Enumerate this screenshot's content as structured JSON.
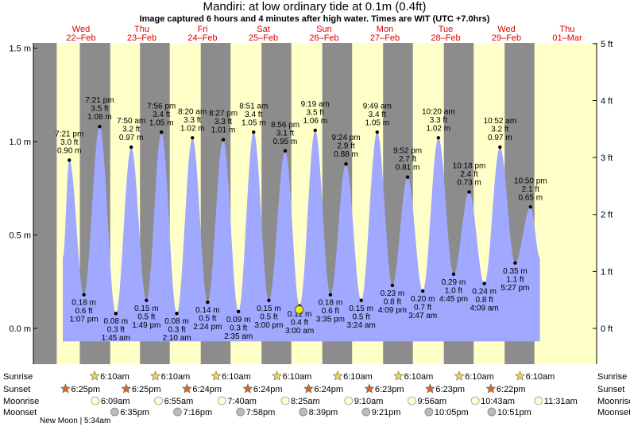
{
  "title": "Mandiri: at low  ordinary tide at 0.1m (0.4ft)",
  "subtitle": "Image captured 6 hours and 4 minutes after high water. Times are WIT (UTC +7.0hrs)",
  "colors": {
    "day": "#ffffc8",
    "night": "#8c8c8c",
    "tide": "#a0a8ff",
    "date_label": "#e00000",
    "current_marker": "#f0f000"
  },
  "chart_data": {
    "type": "area",
    "title": "Mandiri: at low  ordinary tide at 0.1m (0.4ft)",
    "x_unit": "days from 22-Feb 00:00 (WIT)",
    "ylim_m": [
      -0.25,
      1.55
    ],
    "ylim_ft": [
      -0.82,
      5.09
    ],
    "y_ticks_m": [
      {
        "v": 1.5,
        "label": "1.5 m"
      },
      {
        "v": 1.0,
        "label": "1.0 m"
      },
      {
        "v": 0.5,
        "label": "0.5 m"
      },
      {
        "v": 0.0,
        "label": "0.0 m"
      }
    ],
    "y_ticks_ft": [
      {
        "v": 5,
        "label": "5 ft"
      },
      {
        "v": 4,
        "label": "4 ft"
      },
      {
        "v": 3,
        "label": "3 ft"
      },
      {
        "v": 2,
        "label": "2 ft"
      },
      {
        "v": 1,
        "label": "1 ft"
      },
      {
        "v": 0,
        "label": "0 ft"
      }
    ],
    "days": [
      {
        "dow": "Wed",
        "date": "22–Feb",
        "x": 0.0
      },
      {
        "dow": "Thu",
        "date": "23–Feb",
        "x": 1.0
      },
      {
        "dow": "Fri",
        "date": "24–Feb",
        "x": 2.0
      },
      {
        "dow": "Sat",
        "date": "25–Feb",
        "x": 3.0
      },
      {
        "dow": "Sun",
        "date": "26–Feb",
        "x": 4.0
      },
      {
        "dow": "Mon",
        "date": "27–Feb",
        "x": 5.0
      },
      {
        "dow": "Tue",
        "date": "28–Feb",
        "x": 6.0
      },
      {
        "dow": "Wed",
        "date": "29–Feb",
        "x": 7.0
      },
      {
        "dow": "Thu",
        "date": "01–Mar",
        "x": 8.0
      }
    ],
    "extremes": [
      {
        "type": "high",
        "x": -0.193,
        "h": 0.9,
        "time": "7:21 pm",
        "ft": "3.0 ft",
        "m": "0.90 m"
      },
      {
        "type": "low",
        "x": 0.047,
        "h": 0.18,
        "time": "1:07 pm",
        "ft": "0.6 ft",
        "m": "0.18 m"
      },
      {
        "type": "high",
        "x": 0.306,
        "h": 1.08,
        "time": "7:21 pm",
        "ft": "3.5 ft",
        "m": "1.08 m"
      },
      {
        "type": "low",
        "x": 0.573,
        "h": 0.08,
        "time": "1:45 am",
        "ft": "0.3 ft",
        "m": "0.08 m"
      },
      {
        "type": "high",
        "x": 0.826,
        "h": 0.97,
        "time": "7:50 am",
        "ft": "3.2 ft",
        "m": "0.97 m"
      },
      {
        "type": "low",
        "x": 1.076,
        "h": 0.15,
        "time": "1:49 pm",
        "ft": "0.5 ft",
        "m": "0.15 m"
      },
      {
        "type": "high",
        "x": 1.323,
        "h": 1.05,
        "time": "7:56 pm",
        "ft": "3.4 ft",
        "m": "1.05 m"
      },
      {
        "type": "low",
        "x": 1.576,
        "h": 0.08,
        "time": "2:10 am",
        "ft": "0.3 ft",
        "m": "0.08 m"
      },
      {
        "type": "high",
        "x": 1.833,
        "h": 1.02,
        "time": "8:20 am",
        "ft": "3.3 ft",
        "m": "1.02 m"
      },
      {
        "type": "low",
        "x": 2.083,
        "h": 0.14,
        "time": "2:24 pm",
        "ft": "0.5 ft",
        "m": "0.14 m"
      },
      {
        "type": "high",
        "x": 2.34,
        "h": 1.01,
        "time": "8:27 pm",
        "ft": "3.3 ft",
        "m": "1.01 m"
      },
      {
        "type": "low",
        "x": 2.59,
        "h": 0.09,
        "time": "2:35 am",
        "ft": "0.3 ft",
        "m": "0.09 m"
      },
      {
        "type": "high",
        "x": 2.84,
        "h": 1.05,
        "time": "8:51 am",
        "ft": "3.4 ft",
        "m": "1.05 m"
      },
      {
        "type": "low",
        "x": 3.09,
        "h": 0.15,
        "time": "3:00 pm",
        "ft": "0.5 ft",
        "m": "0.15 m"
      },
      {
        "type": "high",
        "x": 3.36,
        "h": 0.95,
        "time": "8:56 pm",
        "ft": "3.1 ft",
        "m": "0.95 m"
      },
      {
        "type": "low",
        "x": 3.596,
        "h": 0.12,
        "time": "3:00 am",
        "ft": "0.4 ft",
        "m": "0.12 m"
      },
      {
        "type": "high",
        "x": 3.853,
        "h": 1.06,
        "time": "9:19 am",
        "ft": "3.5 ft",
        "m": "1.06 m"
      },
      {
        "type": "low",
        "x": 4.103,
        "h": 0.18,
        "time": "3:35 pm",
        "ft": "0.6 ft",
        "m": "0.18 m"
      },
      {
        "type": "high",
        "x": 4.36,
        "h": 0.88,
        "time": "9:24 pm",
        "ft": "2.9 ft",
        "m": "0.88 m"
      },
      {
        "type": "low",
        "x": 4.61,
        "h": 0.15,
        "time": "3:24 am",
        "ft": "0.5 ft",
        "m": "0.15 m"
      },
      {
        "type": "high",
        "x": 4.873,
        "h": 1.05,
        "time": "9:49 am",
        "ft": "3.4 ft",
        "m": "1.05 m"
      },
      {
        "type": "low",
        "x": 5.123,
        "h": 0.23,
        "time": "4:09 pm",
        "ft": "0.8 ft",
        "m": "0.23 m"
      },
      {
        "type": "high",
        "x": 5.373,
        "h": 0.81,
        "time": "9:52 pm",
        "ft": "2.7 ft",
        "m": "0.81 m"
      },
      {
        "type": "low",
        "x": 5.623,
        "h": 0.2,
        "time": "3:47 am",
        "ft": "0.7 ft",
        "m": "0.20 m"
      },
      {
        "type": "high",
        "x": 5.88,
        "h": 1.02,
        "time": "10:20 am",
        "ft": "3.3 ft",
        "m": "1.02 m"
      },
      {
        "type": "low",
        "x": 6.13,
        "h": 0.29,
        "time": "4:45 pm",
        "ft": "1.0 ft",
        "m": "0.29 m"
      },
      {
        "type": "high",
        "x": 6.386,
        "h": 0.73,
        "time": "10:18 pm",
        "ft": "2.4 ft",
        "m": "0.73 m"
      },
      {
        "type": "low",
        "x": 6.636,
        "h": 0.24,
        "time": "4:09 am",
        "ft": "0.8 ft",
        "m": "0.24 m"
      },
      {
        "type": "high",
        "x": 6.893,
        "h": 0.97,
        "time": "10:52 am",
        "ft": "3.2 ft",
        "m": "0.97 m"
      },
      {
        "type": "low",
        "x": 7.143,
        "h": 0.35,
        "time": "5:27 pm",
        "ft": "1.1 ft",
        "m": "0.35 m"
      },
      {
        "type": "high",
        "x": 7.396,
        "h": 0.65,
        "time": "10:50 pm",
        "ft": "2.1 ft",
        "m": "0.65 m"
      }
    ],
    "curve_start": {
      "x": -0.3,
      "h": 0.38
    },
    "curve_end": {
      "x": 7.55,
      "h": 0.38
    },
    "current": {
      "x": 3.588,
      "h": 0.1,
      "ft": "0.4 ft"
    },
    "night_bands": [
      [
        -0.84,
        -0.4
      ],
      [
        -0.02,
        0.48
      ],
      [
        0.97,
        1.46
      ],
      [
        1.97,
        2.46
      ],
      [
        2.97,
        3.46
      ],
      [
        3.97,
        4.46
      ],
      [
        4.97,
        5.46
      ],
      [
        5.97,
        6.46
      ],
      [
        6.97,
        7.46
      ]
    ],
    "sun_moon": [
      {
        "dow": "Wed",
        "sunrise": "6:10am",
        "sunset": "6:25pm",
        "moonrise": "6:09am",
        "moonset": "6:35pm"
      },
      {
        "dow": "Thu",
        "sunrise": "6:10am",
        "sunset": "6:25pm",
        "moonrise": "6:55am",
        "moonset": "7:16pm"
      },
      {
        "dow": "Fri",
        "sunrise": "6:10am",
        "sunset": "6:24pm",
        "moonrise": "7:40am",
        "moonset": "7:58pm"
      },
      {
        "dow": "Sat",
        "sunrise": "6:10am",
        "sunset": "6:24pm",
        "moonrise": "8:25am",
        "moonset": "8:39pm"
      },
      {
        "dow": "Sun",
        "sunrise": "6:10am",
        "sunset": "6:24pm",
        "moonrise": "9:10am",
        "moonset": "9:21pm"
      },
      {
        "dow": "Mon",
        "sunrise": "6:10am",
        "sunset": "6:23pm",
        "moonrise": "9:56am",
        "moonset": "10:05pm"
      },
      {
        "dow": "Tue",
        "sunrise": "6:10am",
        "sunset": "6:23pm",
        "moonrise": "10:43am",
        "moonset": "10:51pm"
      },
      {
        "dow": "Wed",
        "sunrise": "6:10am",
        "sunset": "6:22pm",
        "moonrise": "11:31am",
        "moonset": ""
      }
    ],
    "row_labels": {
      "sunrise": "Sunrise",
      "sunset": "Sunset",
      "moonrise": "Moonrise",
      "moonset": "Moonset"
    },
    "moon_phase_note": "New Moon | 5:34am"
  }
}
